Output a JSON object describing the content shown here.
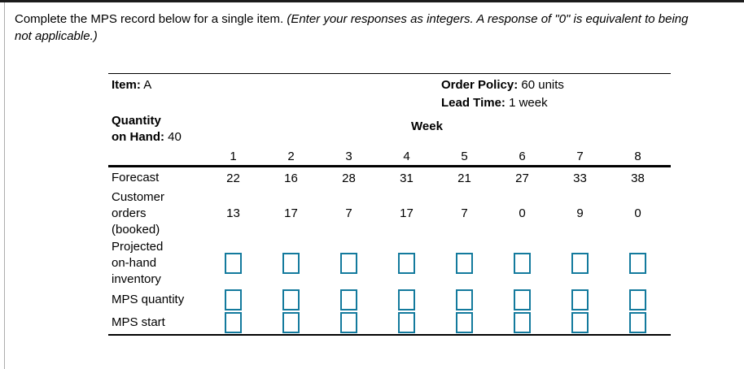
{
  "question": {
    "normal": "Complete the MPS record below for a single item.",
    "italic_line1": "(Enter your responses as integers. A response of \"0\" is equivalent to being",
    "italic_line2": "not applicable.)"
  },
  "record": {
    "item_label": "Item:",
    "item_value": "A",
    "order_policy_label": "Order Policy:",
    "order_policy_value": "60 units",
    "lead_time_label": "Lead Time:",
    "lead_time_value": "1 week",
    "qoh_label_line1": "Quantity",
    "qoh_label_line2": "on Hand:",
    "qoh_value": "40",
    "week_header": "Week",
    "weeks": [
      "1",
      "2",
      "3",
      "4",
      "5",
      "6",
      "7",
      "8"
    ],
    "rows": {
      "forecast": {
        "label": "Forecast",
        "values": [
          "22",
          "16",
          "28",
          "31",
          "21",
          "27",
          "33",
          "38"
        ]
      },
      "customer_orders": {
        "label_line1": "Customer",
        "label_line2": "orders",
        "label_line3": "(booked)",
        "values": [
          "13",
          "17",
          "7",
          "17",
          "7",
          "0",
          "9",
          "0"
        ]
      },
      "projected_inventory": {
        "label_line1": "Projected",
        "label_line2": "on-hand",
        "label_line3": "inventory",
        "inputs": [
          "",
          "",
          "",
          "",
          "",
          "",
          "",
          ""
        ]
      },
      "mps_quantity": {
        "label": "MPS quantity",
        "inputs": [
          "",
          "",
          "",
          "",
          "",
          "",
          "",
          ""
        ]
      },
      "mps_start": {
        "label": "MPS start",
        "inputs": [
          "",
          "",
          "",
          "",
          "",
          "",
          "",
          ""
        ]
      }
    }
  },
  "colors": {
    "input_border": "#137a9d",
    "rule": "#000000",
    "top_bar": "#1c1c1c",
    "left_line": "#aeaeae"
  }
}
